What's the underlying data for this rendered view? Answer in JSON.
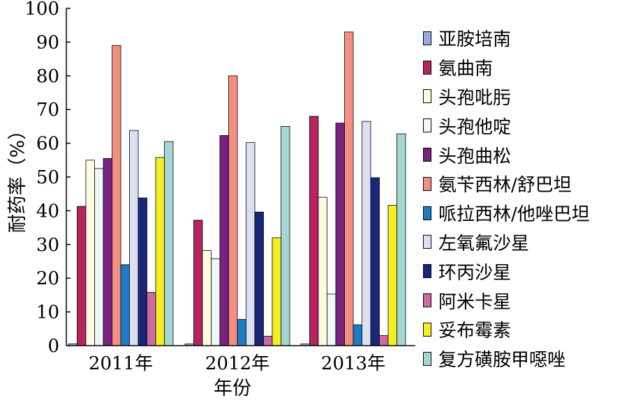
{
  "chart_data": {
    "type": "bar",
    "title": "",
    "xlabel": "年份",
    "ylabel": "耐药率（%）",
    "ylim": [
      0,
      100
    ],
    "yticks": [
      0,
      10,
      20,
      30,
      40,
      50,
      60,
      70,
      80,
      90,
      100
    ],
    "categories": [
      "2011年",
      "2012年",
      "2013年"
    ],
    "legend_position": "right",
    "series": [
      {
        "name": "亚胺培南",
        "color": "#9aa8dc",
        "values": [
          0.5,
          0.5,
          0.5
        ]
      },
      {
        "name": "氨曲南",
        "color": "#b5245e",
        "values": [
          41.3,
          37.2,
          68
        ]
      },
      {
        "name": "头孢吡肟",
        "color": "#fffde0",
        "values": [
          55,
          28.2,
          44
        ]
      },
      {
        "name": "头孢他啶",
        "color": "#eef8f7",
        "values": [
          52.5,
          25.8,
          15.3
        ]
      },
      {
        "name": "头孢曲松",
        "color": "#7a2282",
        "values": [
          55.5,
          62.3,
          66
        ]
      },
      {
        "name": "氨苄西林/舒巴坦",
        "color": "#f28f80",
        "values": [
          89,
          80,
          93
        ]
      },
      {
        "name": "哌拉西林/他唑巴坦",
        "color": "#1e7cc4",
        "values": [
          24,
          7.8,
          6.2
        ]
      },
      {
        "name": "左氧氟沙星",
        "color": "#dde0f3",
        "values": [
          63.8,
          60.2,
          66.5
        ]
      },
      {
        "name": "环丙沙星",
        "color": "#1a2678",
        "values": [
          43.8,
          39.6,
          49.8
        ]
      },
      {
        "name": "阿米卡星",
        "color": "#cc6aa5",
        "values": [
          15.8,
          2.8,
          3
        ]
      },
      {
        "name": "妥布霉素",
        "color": "#f4ef22",
        "values": [
          55.8,
          32,
          41.6
        ]
      },
      {
        "name": "复方磺胺甲噁唑",
        "color": "#a4d6d4",
        "values": [
          60.5,
          65,
          62.8
        ]
      }
    ]
  }
}
